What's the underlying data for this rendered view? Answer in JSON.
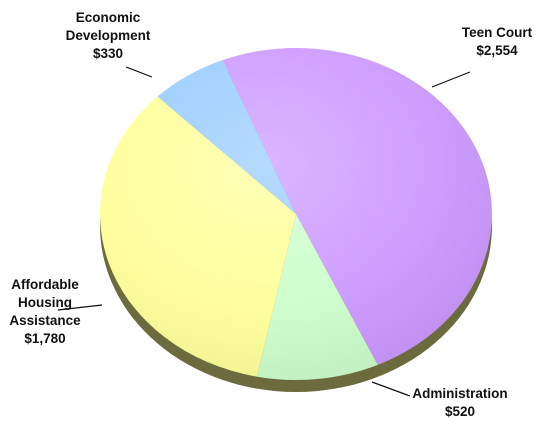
{
  "chart_data": {
    "type": "pie",
    "title": "",
    "slices": [
      {
        "label_lines": [
          "Teen Court",
          "$2,554"
        ],
        "name": "Teen Court",
        "value": 2554,
        "color": "#cc99ff"
      },
      {
        "label_lines": [
          "Administration",
          "$520"
        ],
        "name": "Administration",
        "value": 520,
        "color": "#ccffcc"
      },
      {
        "label_lines": [
          "Affordable",
          "Housing",
          "Assistance",
          "$1,780"
        ],
        "name": "Affordable Housing Assistance",
        "value": 1780,
        "color": "#ffff99"
      },
      {
        "label_lines": [
          "Economic",
          "Development",
          "$330"
        ],
        "name": "Economic Development",
        "value": 330,
        "color": "#99ccff"
      }
    ],
    "legend": "none",
    "style": "3d-tilted"
  }
}
